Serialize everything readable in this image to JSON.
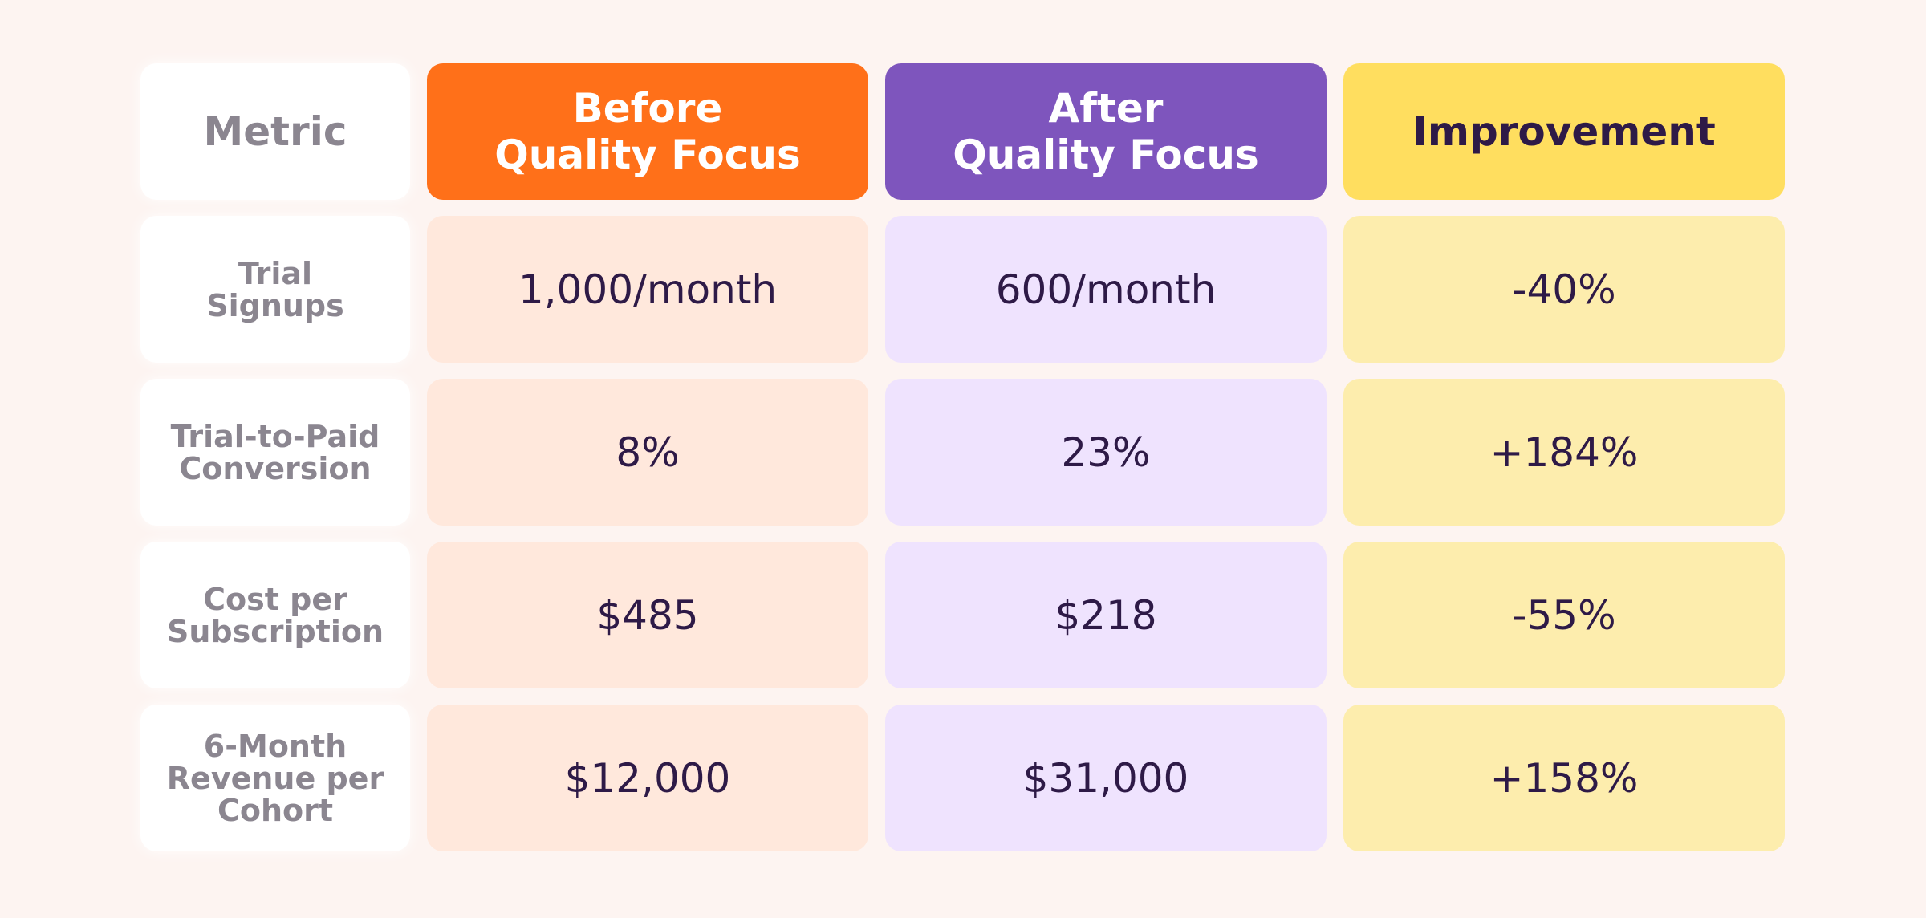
{
  "chart_data": {
    "type": "table",
    "columns": [
      "Metric",
      "Before\nQuality Focus",
      "After\nQuality Focus",
      "Improvement"
    ],
    "rows": [
      {
        "metric": "Trial\nSignups",
        "before": "1,000/month",
        "after": "600/month",
        "improvement": "-40%"
      },
      {
        "metric": "Trial-to-Paid\nConversion",
        "before": "8%",
        "after": "23%",
        "improvement": "+184%"
      },
      {
        "metric": "Cost per\nSubscription",
        "before": "$485",
        "after": "$218",
        "improvement": "-55%"
      },
      {
        "metric": "6-Month\nRevenue per\nCohort",
        "before": "$12,000",
        "after": "$31,000",
        "improvement": "+158%"
      }
    ]
  },
  "colors": {
    "background": "#fdf4f1",
    "before_header": "#ff7019",
    "after_header": "#7e55bd",
    "improvement_header": "#ffde5f",
    "before_cell": "#ffe8dc",
    "after_cell": "#efe3fe",
    "improvement_cell": "#fdedad",
    "value_text": "#2e1a47",
    "metric_text": "#8b8690"
  }
}
